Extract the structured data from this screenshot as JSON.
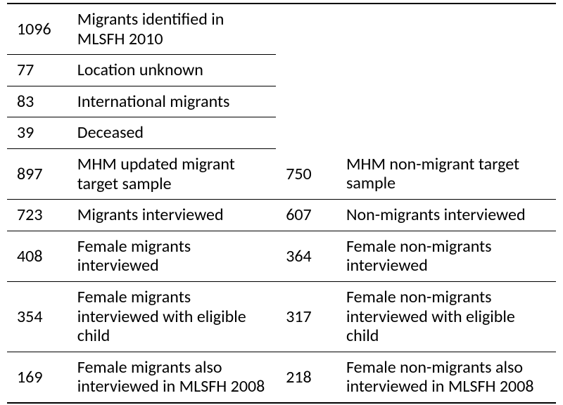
{
  "table": {
    "background_color": "#ffffff",
    "text_color": "#000000",
    "font_family": "Calibri",
    "font_size_pt": 18,
    "border_color": "#000000",
    "rows": [
      {
        "left_num": "1096",
        "left_text": "Migrants identified in MLSFH 2010",
        "right_num": "",
        "right_text": "",
        "right_empty": true
      },
      {
        "left_num": "77",
        "left_text": "Location unknown",
        "right_num": "",
        "right_text": "",
        "right_empty": true
      },
      {
        "left_num": "83",
        "left_text": "International migrants",
        "right_num": "",
        "right_text": "",
        "right_empty": true
      },
      {
        "left_num": "39",
        "left_text": "Deceased",
        "right_num": "",
        "right_text": "",
        "right_empty": true
      },
      {
        "left_num": "897",
        "left_text": "MHM updated migrant target sample",
        "right_num": "750",
        "right_text": "MHM non-migrant target sample",
        "right_empty": false
      },
      {
        "left_num": "723",
        "left_text": "Migrants interviewed",
        "right_num": "607",
        "right_text": "Non-migrants interviewed",
        "right_empty": false
      },
      {
        "left_num": "408",
        "left_text": "Female migrants interviewed",
        "right_num": "364",
        "right_text": "Female non-migrants interviewed",
        "right_empty": false
      },
      {
        "left_num": "354",
        "left_text": "Female migrants interviewed with eligible child",
        "right_num": "317",
        "right_text": "Female non-migrants interviewed with eligible child",
        "right_empty": false
      },
      {
        "left_num": "169",
        "left_text": "Female migrants also interviewed in MLSFH 2008",
        "right_num": "218",
        "right_text": "Female non-migrants also interviewed in MLSFH 2008",
        "right_empty": false
      }
    ]
  }
}
